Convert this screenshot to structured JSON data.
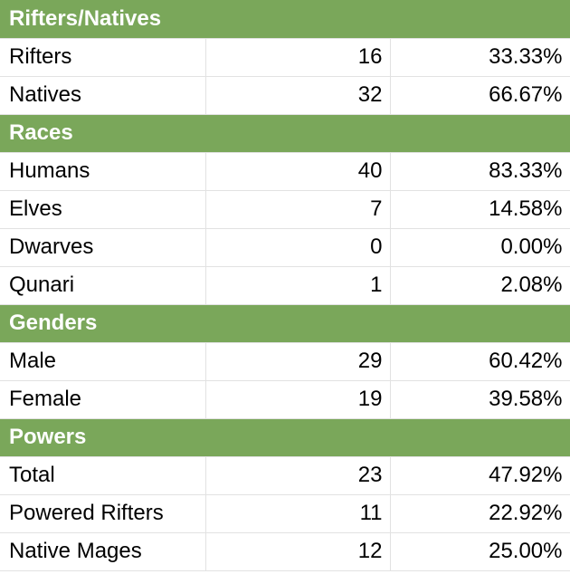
{
  "sections": [
    {
      "title": "Rifters/Natives",
      "rows": [
        {
          "label": "Rifters",
          "count": "16",
          "percent": "33.33%"
        },
        {
          "label": "Natives",
          "count": "32",
          "percent": "66.67%"
        }
      ]
    },
    {
      "title": "Races",
      "rows": [
        {
          "label": "Humans",
          "count": "40",
          "percent": "83.33%"
        },
        {
          "label": "Elves",
          "count": "7",
          "percent": "14.58%"
        },
        {
          "label": "Dwarves",
          "count": "0",
          "percent": "0.00%"
        },
        {
          "label": "Qunari",
          "count": "1",
          "percent": "2.08%"
        }
      ]
    },
    {
      "title": "Genders",
      "rows": [
        {
          "label": "Male",
          "count": "29",
          "percent": "60.42%"
        },
        {
          "label": "Female",
          "count": "19",
          "percent": "39.58%"
        }
      ]
    },
    {
      "title": "Powers",
      "rows": [
        {
          "label": "Total",
          "count": "23",
          "percent": "47.92%"
        },
        {
          "label": "Powered Rifters",
          "count": "11",
          "percent": "22.92%"
        },
        {
          "label": "Native Mages",
          "count": "12",
          "percent": "25.00%"
        }
      ]
    }
  ],
  "colors": {
    "header_background": "#7aa75a",
    "header_text": "#ffffff",
    "gridline": "#e2e2e2"
  }
}
